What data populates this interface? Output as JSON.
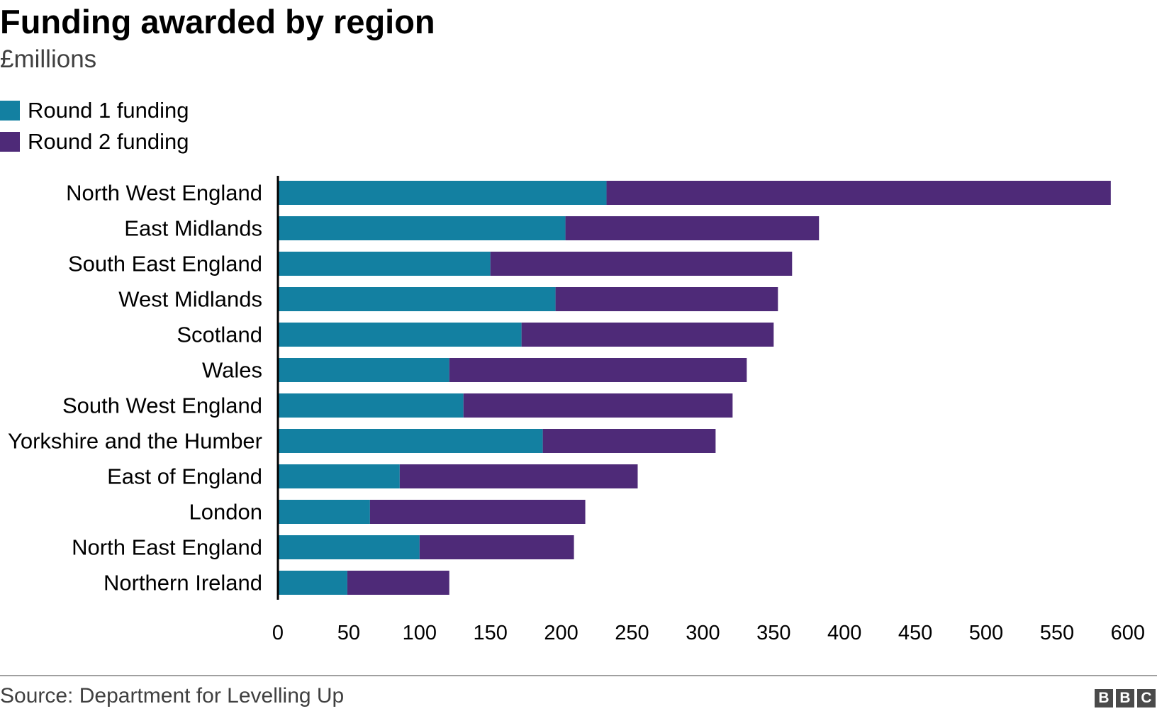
{
  "chart_data": {
    "type": "bar",
    "orientation": "horizontal",
    "stacked": true,
    "title": "Funding awarded by region",
    "subtitle": "£millions",
    "categories": [
      "North West England",
      "East Midlands",
      "South East England",
      "West Midlands",
      "Scotland",
      "Wales",
      "South West England",
      "Yorkshire and the Humber",
      "East of England",
      "London",
      "North East England",
      "Northern Ireland"
    ],
    "series": [
      {
        "name": "Round 1 funding",
        "color": "#1380A1",
        "values": [
          232,
          203,
          150,
          196,
          172,
          121,
          131,
          187,
          86,
          65,
          100,
          49
        ]
      },
      {
        "name": "Round 2 funding",
        "color": "#4E2A78",
        "values": [
          356,
          179,
          213,
          157,
          178,
          210,
          190,
          122,
          168,
          152,
          109,
          72
        ]
      }
    ],
    "xlim": [
      0,
      600
    ],
    "xticks": [
      0,
      50,
      100,
      150,
      200,
      250,
      300,
      350,
      400,
      450,
      500,
      550,
      600
    ],
    "grid": false,
    "legend": "top-left",
    "source": "Source: Department for Levelling Up",
    "logo": "BBC"
  }
}
